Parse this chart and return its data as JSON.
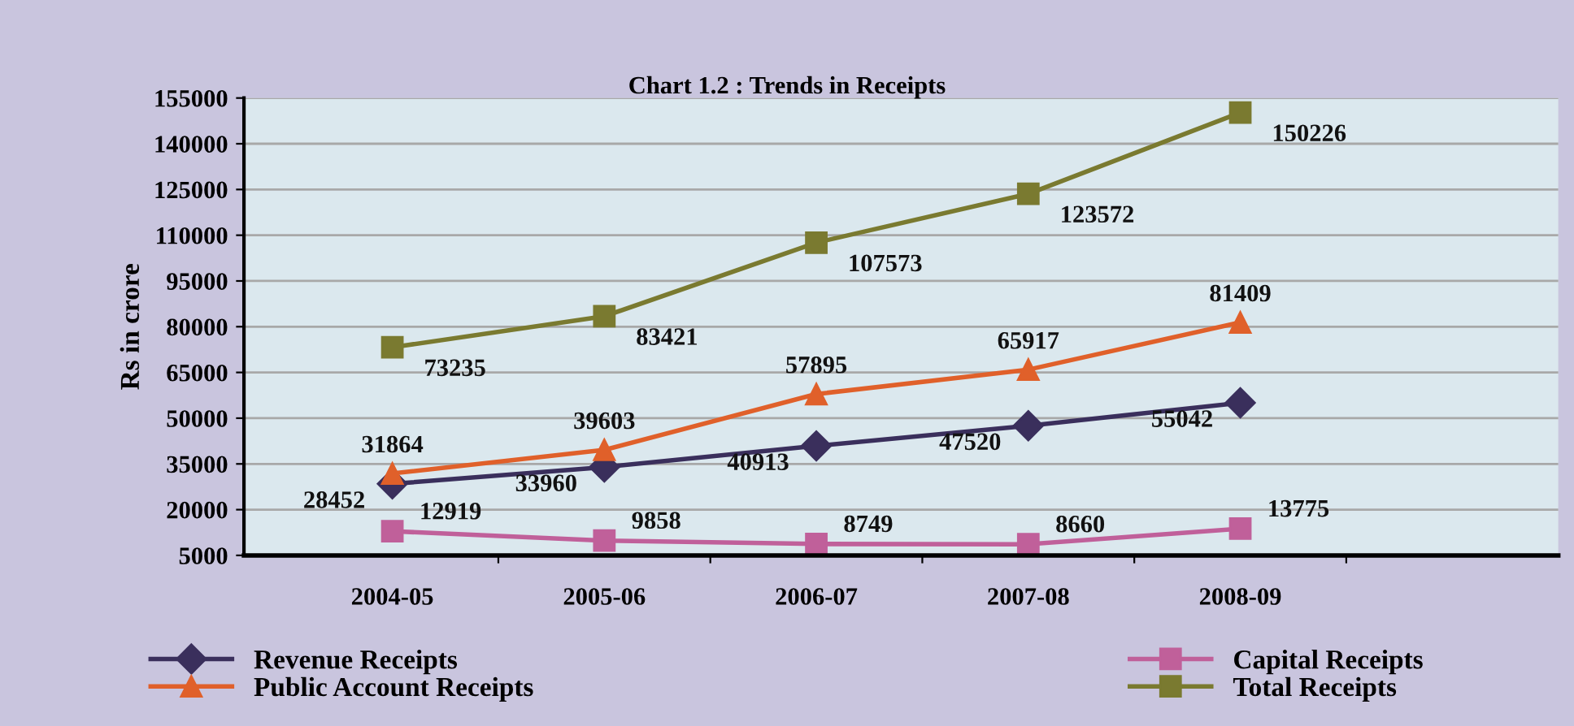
{
  "chart_data": {
    "type": "line",
    "title": "Chart 1.2 : Trends in Receipts",
    "ylabel": "Rs in crore",
    "categories": [
      "2004-05",
      "2005-06",
      "2006-07",
      "2007-08",
      "2008-09",
      null
    ],
    "series": [
      {
        "name": "Revenue Receipts",
        "color": "#3a2f5c",
        "marker": "diamond",
        "values": [
          28452,
          33960,
          40913,
          47520,
          55042,
          null
        ]
      },
      {
        "name": "Capital Receipts",
        "color": "#c0609a",
        "marker": "square",
        "values": [
          12919,
          9858,
          8749,
          8660,
          13775,
          null
        ]
      },
      {
        "name": "Public Account Receipts",
        "color": "#e0602a",
        "marker": "triangle",
        "values": [
          31864,
          39603,
          57895,
          65917,
          81409,
          null
        ]
      },
      {
        "name": "Total Receipts",
        "color": "#7a7a30",
        "marker": "square",
        "values": [
          73235,
          83421,
          107573,
          123572,
          150226,
          null
        ]
      }
    ],
    "ylim": [
      5000,
      155000
    ],
    "yticks": [
      5000,
      20000,
      35000,
      50000,
      65000,
      80000,
      95000,
      110000,
      125000,
      140000,
      155000
    ],
    "grid": "y",
    "legend": "bottom",
    "data_labels": true
  }
}
